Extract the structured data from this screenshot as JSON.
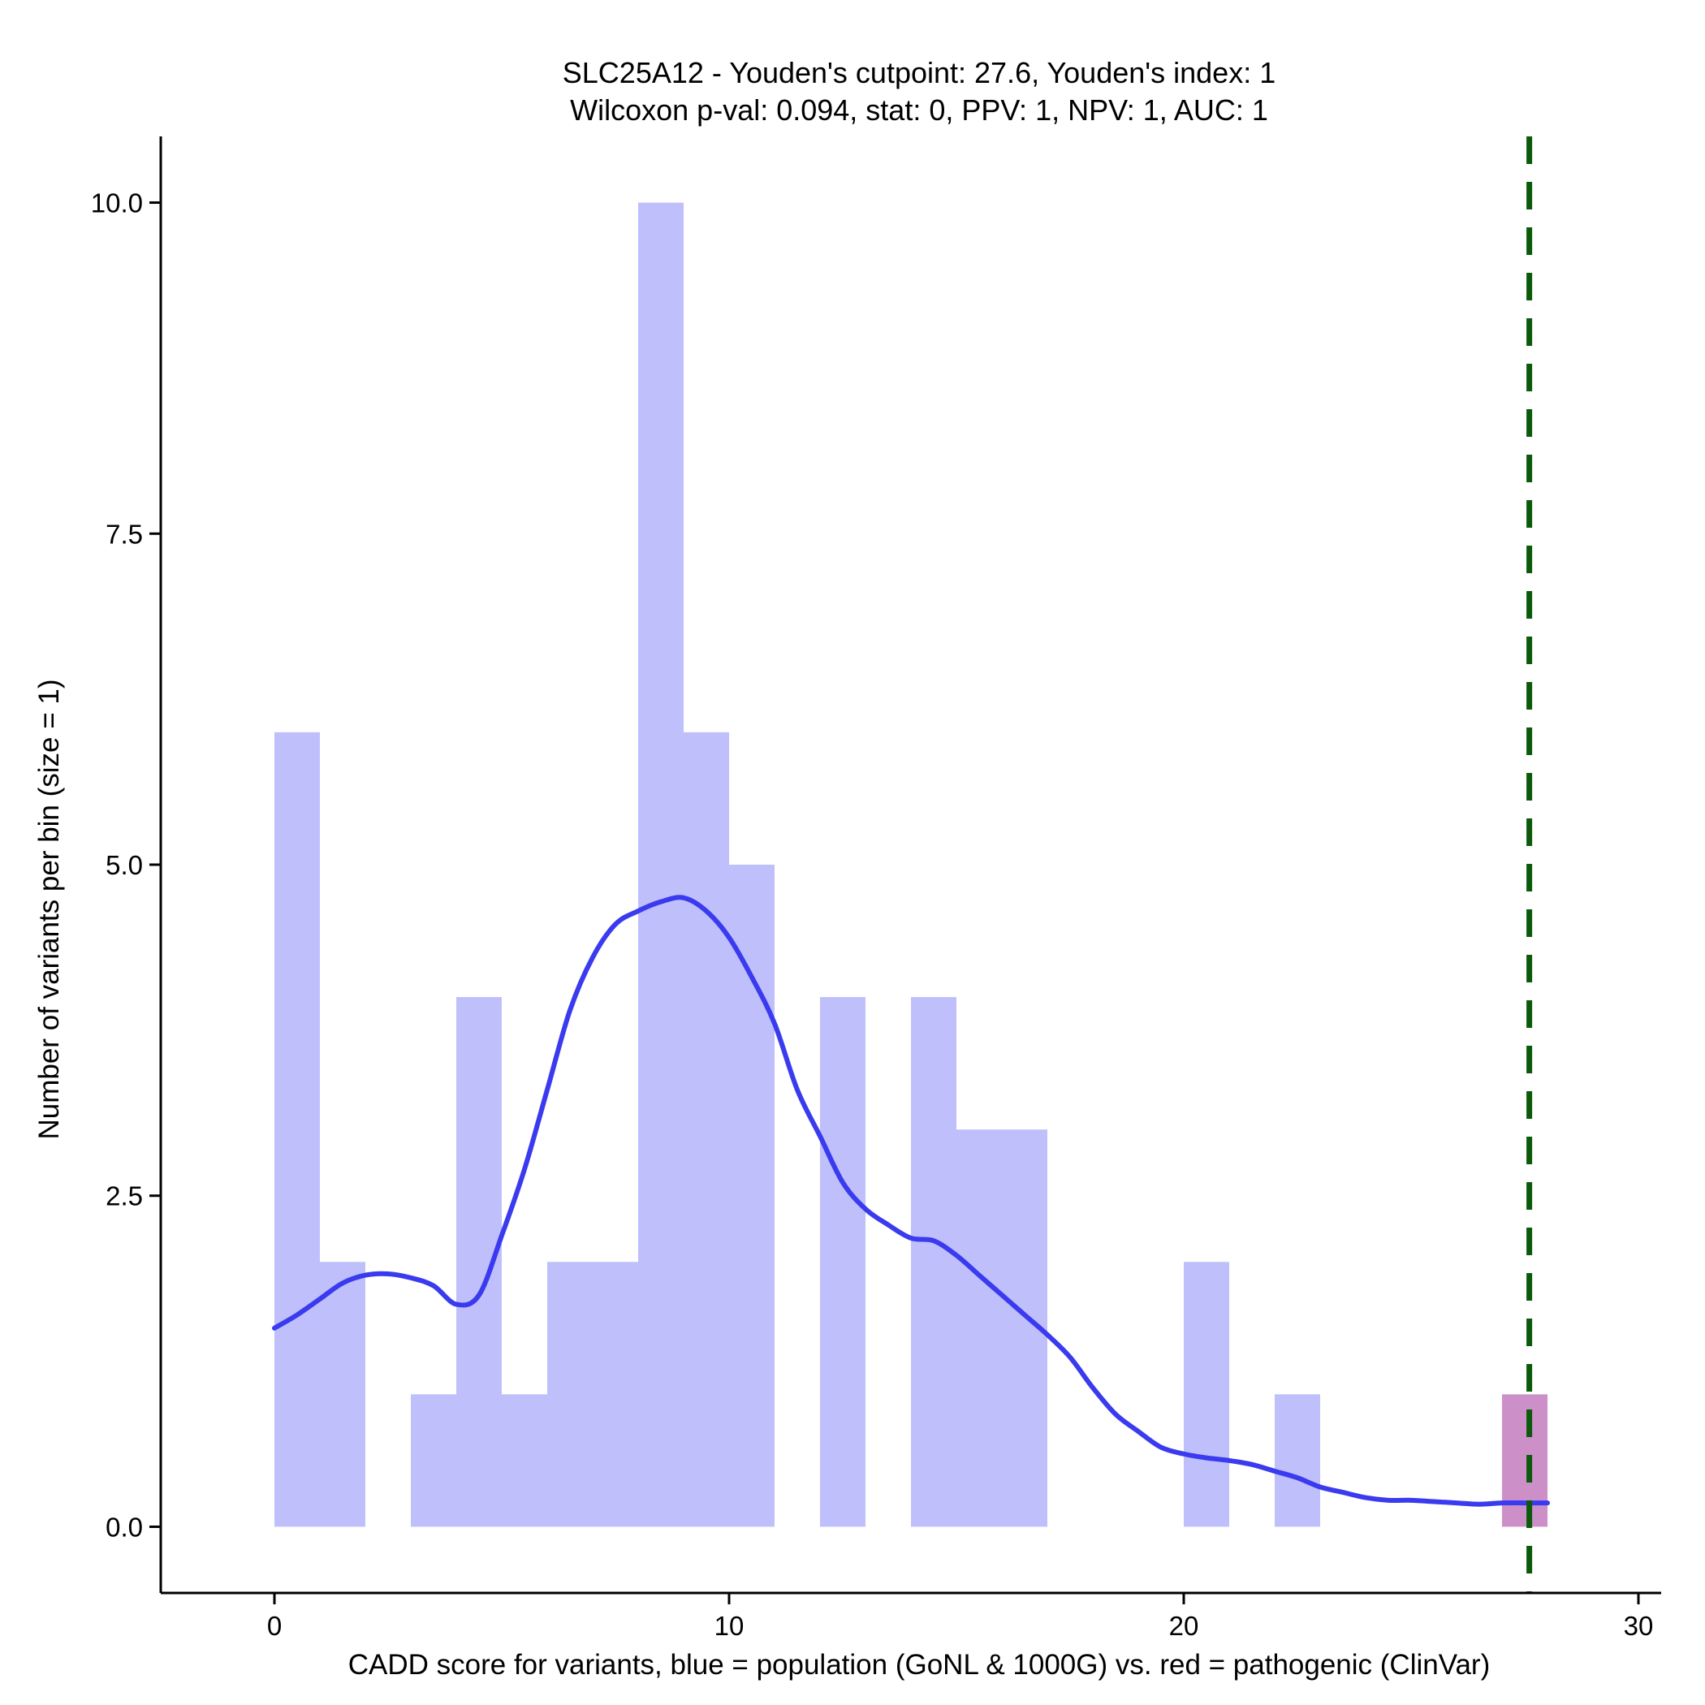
{
  "chart_data": {
    "type": "bar",
    "title": "SLC25A12 - Youden's cutpoint: 27.6, Youden's index: 1",
    "subtitle": "Wilcoxon p-val: 0.094, stat: 0, PPV: 1, NPV: 1, AUC: 1",
    "xlabel": "CADD score for variants, blue = population (GoNL & 1000G) vs. red = pathogenic (ClinVar)",
    "ylabel": "Number of variants per bin (size = 1)",
    "xlim": [
      -2.5,
      30.5
    ],
    "ylim": [
      -0.5,
      10.5
    ],
    "x_ticks": [
      0,
      10,
      20,
      30
    ],
    "x_tick_labels": [
      "0",
      "10",
      "20",
      "30"
    ],
    "y_ticks": [
      0,
      2.5,
      5,
      7.5,
      10
    ],
    "y_tick_labels": [
      "0.0",
      "2.5",
      "5.0",
      "7.5",
      "10.0"
    ],
    "bin_width": 1,
    "series": [
      {
        "name": "population (GoNL & 1000G)",
        "color": "#bfbffc",
        "bins": [
          {
            "start": 0,
            "count": 6
          },
          {
            "start": 1,
            "count": 2
          },
          {
            "start": 3,
            "count": 1
          },
          {
            "start": 4,
            "count": 4
          },
          {
            "start": 5,
            "count": 1
          },
          {
            "start": 6,
            "count": 2
          },
          {
            "start": 7,
            "count": 2
          },
          {
            "start": 8,
            "count": 10
          },
          {
            "start": 9,
            "count": 6
          },
          {
            "start": 10,
            "count": 5
          },
          {
            "start": 12,
            "count": 4
          },
          {
            "start": 14,
            "count": 4
          },
          {
            "start": 15,
            "count": 3
          },
          {
            "start": 16,
            "count": 3
          },
          {
            "start": 20,
            "count": 2
          },
          {
            "start": 22,
            "count": 1
          }
        ]
      },
      {
        "name": "pathogenic (ClinVar)",
        "color": "#cc8fc8",
        "bins": [
          {
            "start": 27,
            "count": 1
          }
        ]
      }
    ],
    "density_curve": {
      "name": "population density",
      "color": "#3a3aef",
      "x": [
        0,
        0.5,
        1,
        1.5,
        2,
        2.5,
        3,
        3.5,
        4,
        4.5,
        5,
        5.5,
        6,
        6.5,
        7,
        7.5,
        8,
        8.5,
        9,
        9.5,
        10,
        10.5,
        11,
        11.5,
        12,
        12.5,
        13,
        13.5,
        14,
        14.5,
        15,
        15.5,
        16,
        16.5,
        17,
        17.5,
        18,
        18.5,
        19,
        19.5,
        20,
        20.5,
        21,
        21.5,
        22,
        22.5,
        23,
        23.5,
        24,
        24.5,
        25,
        25.5,
        26,
        26.5,
        27,
        27.5,
        28
      ],
      "y": [
        1.5,
        1.6,
        1.72,
        1.84,
        1.9,
        1.91,
        1.88,
        1.82,
        1.68,
        1.75,
        2.2,
        2.7,
        3.3,
        3.9,
        4.3,
        4.55,
        4.65,
        4.72,
        4.75,
        4.65,
        4.45,
        4.15,
        3.8,
        3.3,
        2.95,
        2.6,
        2.4,
        2.28,
        2.18,
        2.16,
        2.05,
        1.9,
        1.75,
        1.6,
        1.45,
        1.28,
        1.05,
        0.85,
        0.72,
        0.6,
        0.55,
        0.52,
        0.5,
        0.47,
        0.42,
        0.37,
        0.3,
        0.26,
        0.22,
        0.2,
        0.2,
        0.19,
        0.18,
        0.17,
        0.18,
        0.18,
        0.18
      ]
    },
    "cutpoint_line": {
      "name": "Youden's cutpoint",
      "x": 27.6,
      "color": "#0a5a0a",
      "style": "dashed"
    }
  }
}
